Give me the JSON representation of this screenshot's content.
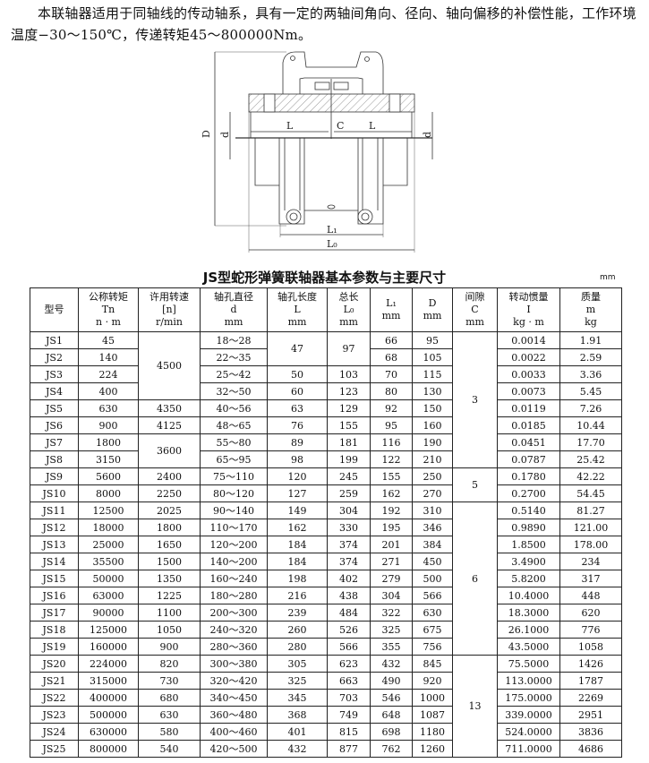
{
  "intro": "本联轴器适用于同轴线的传动轴系，具有一定的两轴间角向、径向、轴向偏移的补偿性能，工作环境温度−30～150℃，传递转矩45～800000Nm。",
  "diagram_labels": {
    "D": "D",
    "d_left": "d",
    "d_right": "d",
    "L_left": "L",
    "C": "C",
    "L_right": "L",
    "L1": "L₁",
    "L0": "L₀"
  },
  "table": {
    "title": "JS型蛇形弹簧联轴器基本参数与主要尺寸",
    "unit": "mm",
    "headers": [
      [
        "型号"
      ],
      [
        "公称转矩",
        "Tn",
        "n · m"
      ],
      [
        "许用转速",
        "[n]",
        "r/min"
      ],
      [
        "轴孔直径",
        "d",
        "mm"
      ],
      [
        "轴孔长度",
        "L",
        "mm"
      ],
      [
        "总长",
        "L₀",
        "mm"
      ],
      [
        "L₁",
        "mm"
      ],
      [
        "D",
        "mm"
      ],
      [
        "间隙",
        "C",
        "mm"
      ],
      [
        "转动惯量",
        "I",
        "kg · m"
      ],
      [
        "质量",
        "m",
        "kg"
      ]
    ],
    "rows": [
      [
        "JS1",
        "45",
        {
          "v": "4500",
          "span": 4
        },
        "18～28",
        {
          "v": "47",
          "span": 2
        },
        {
          "v": "97",
          "span": 2
        },
        "66",
        "95",
        {
          "v": "3",
          "span": 8
        },
        "0.0014",
        "1.91"
      ],
      [
        "JS2",
        "140",
        null,
        "22～35",
        null,
        null,
        "68",
        "105",
        null,
        "0.0022",
        "2.59"
      ],
      [
        "JS3",
        "224",
        null,
        "25～42",
        "50",
        "103",
        "70",
        "115",
        null,
        "0.0033",
        "3.36"
      ],
      [
        "JS4",
        "400",
        null,
        "32～50",
        "60",
        "123",
        "80",
        "130",
        null,
        "0.0073",
        "5.45"
      ],
      [
        "JS5",
        "630",
        "4350",
        "40～56",
        "63",
        "129",
        "92",
        "150",
        null,
        "0.0119",
        "7.26"
      ],
      [
        "JS6",
        "900",
        "4125",
        "48～65",
        "76",
        "155",
        "95",
        "160",
        null,
        "0.0185",
        "10.44"
      ],
      [
        "JS7",
        "1800",
        {
          "v": "3600",
          "span": 2
        },
        "55～80",
        "89",
        "181",
        "116",
        "190",
        null,
        "0.0451",
        "17.70"
      ],
      [
        "JS8",
        "3150",
        null,
        "65～95",
        "98",
        "199",
        "122",
        "210",
        null,
        "0.0787",
        "25.42"
      ],
      [
        "JS9",
        "5600",
        "2400",
        "75～110",
        "120",
        "245",
        "155",
        "250",
        {
          "v": "5",
          "span": 2
        },
        "0.1780",
        "42.22"
      ],
      [
        "JS10",
        "8000",
        "2250",
        "80～120",
        "127",
        "259",
        "162",
        "270",
        null,
        "0.2700",
        "54.45"
      ],
      [
        "JS11",
        "12500",
        "2025",
        "90～140",
        "149",
        "304",
        "192",
        "310",
        {
          "v": "6",
          "span": 9
        },
        "0.5140",
        "81.27"
      ],
      [
        "JS12",
        "18000",
        "1800",
        "110～170",
        "162",
        "330",
        "195",
        "346",
        null,
        "0.9890",
        "121.00"
      ],
      [
        "JS13",
        "25000",
        "1650",
        "120～200",
        "184",
        "374",
        "201",
        "384",
        null,
        "1.8500",
        "178.00"
      ],
      [
        "JS14",
        "35500",
        "1500",
        "140～200",
        "184",
        "374",
        "271",
        "450",
        null,
        "3.4900",
        "234"
      ],
      [
        "JS15",
        "50000",
        "1350",
        "160～240",
        "198",
        "402",
        "279",
        "500",
        null,
        "5.8200",
        "317"
      ],
      [
        "JS16",
        "63000",
        "1225",
        "180～280",
        "216",
        "438",
        "304",
        "566",
        null,
        "10.4000",
        "448"
      ],
      [
        "JS17",
        "90000",
        "1100",
        "200～300",
        "239",
        "484",
        "322",
        "630",
        null,
        "18.3000",
        "620"
      ],
      [
        "JS18",
        "125000",
        "1050",
        "240～320",
        "260",
        "526",
        "325",
        "675",
        null,
        "26.1000",
        "776"
      ],
      [
        "JS19",
        "160000",
        "900",
        "280～360",
        "280",
        "566",
        "355",
        "756",
        null,
        "43.5000",
        "1058"
      ],
      [
        "JS20",
        "224000",
        "820",
        "300～380",
        "305",
        "623",
        "432",
        "845",
        {
          "v": "13",
          "span": 6
        },
        "75.5000",
        "1426"
      ],
      [
        "JS21",
        "315000",
        "730",
        "320～420",
        "325",
        "663",
        "490",
        "920",
        null,
        "113.0000",
        "1787"
      ],
      [
        "JS22",
        "400000",
        "680",
        "340～450",
        "345",
        "703",
        "546",
        "1000",
        null,
        "175.0000",
        "2269"
      ],
      [
        "JS23",
        "500000",
        "630",
        "360～480",
        "368",
        "749",
        "648",
        "1087",
        null,
        "339.0000",
        "2951"
      ],
      [
        "JS24",
        "630000",
        "580",
        "400～460",
        "401",
        "815",
        "698",
        "1180",
        null,
        "524.0000",
        "3836"
      ],
      [
        "JS25",
        "800000",
        "540",
        "420～500",
        "432",
        "877",
        "762",
        "1260",
        null,
        "711.0000",
        "4686"
      ]
    ]
  }
}
